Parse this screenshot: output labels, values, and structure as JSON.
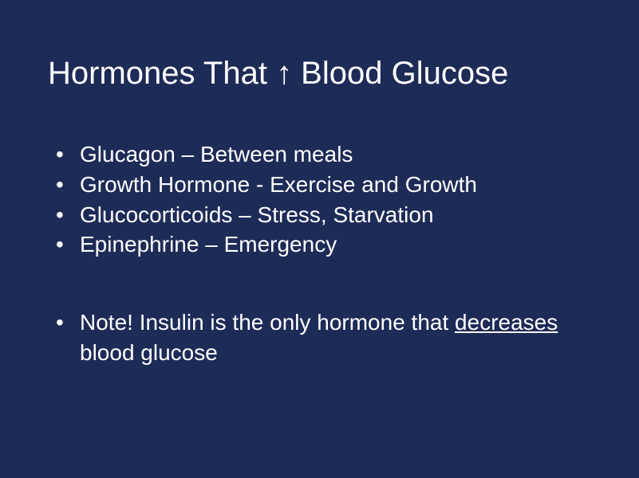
{
  "background_color": "#1d2b57",
  "text_color": "#ffffff",
  "font_family": "Arial, Helvetica, sans-serif",
  "title": {
    "prefix": "Hormones That ",
    "arrow": "↑",
    "suffix": " Blood Glucose",
    "fontsize": 40
  },
  "bullets": [
    "Glucagon – Between meals",
    "Growth Hormone - Exercise and Growth",
    "Glucocorticoids – Stress, Starvation",
    "Epinephrine – Emergency"
  ],
  "bullet_fontsize": 28,
  "note": {
    "prefix": "Note! Insulin is the only hormone that ",
    "underlined": "decreases",
    "suffix": " blood glucose"
  }
}
